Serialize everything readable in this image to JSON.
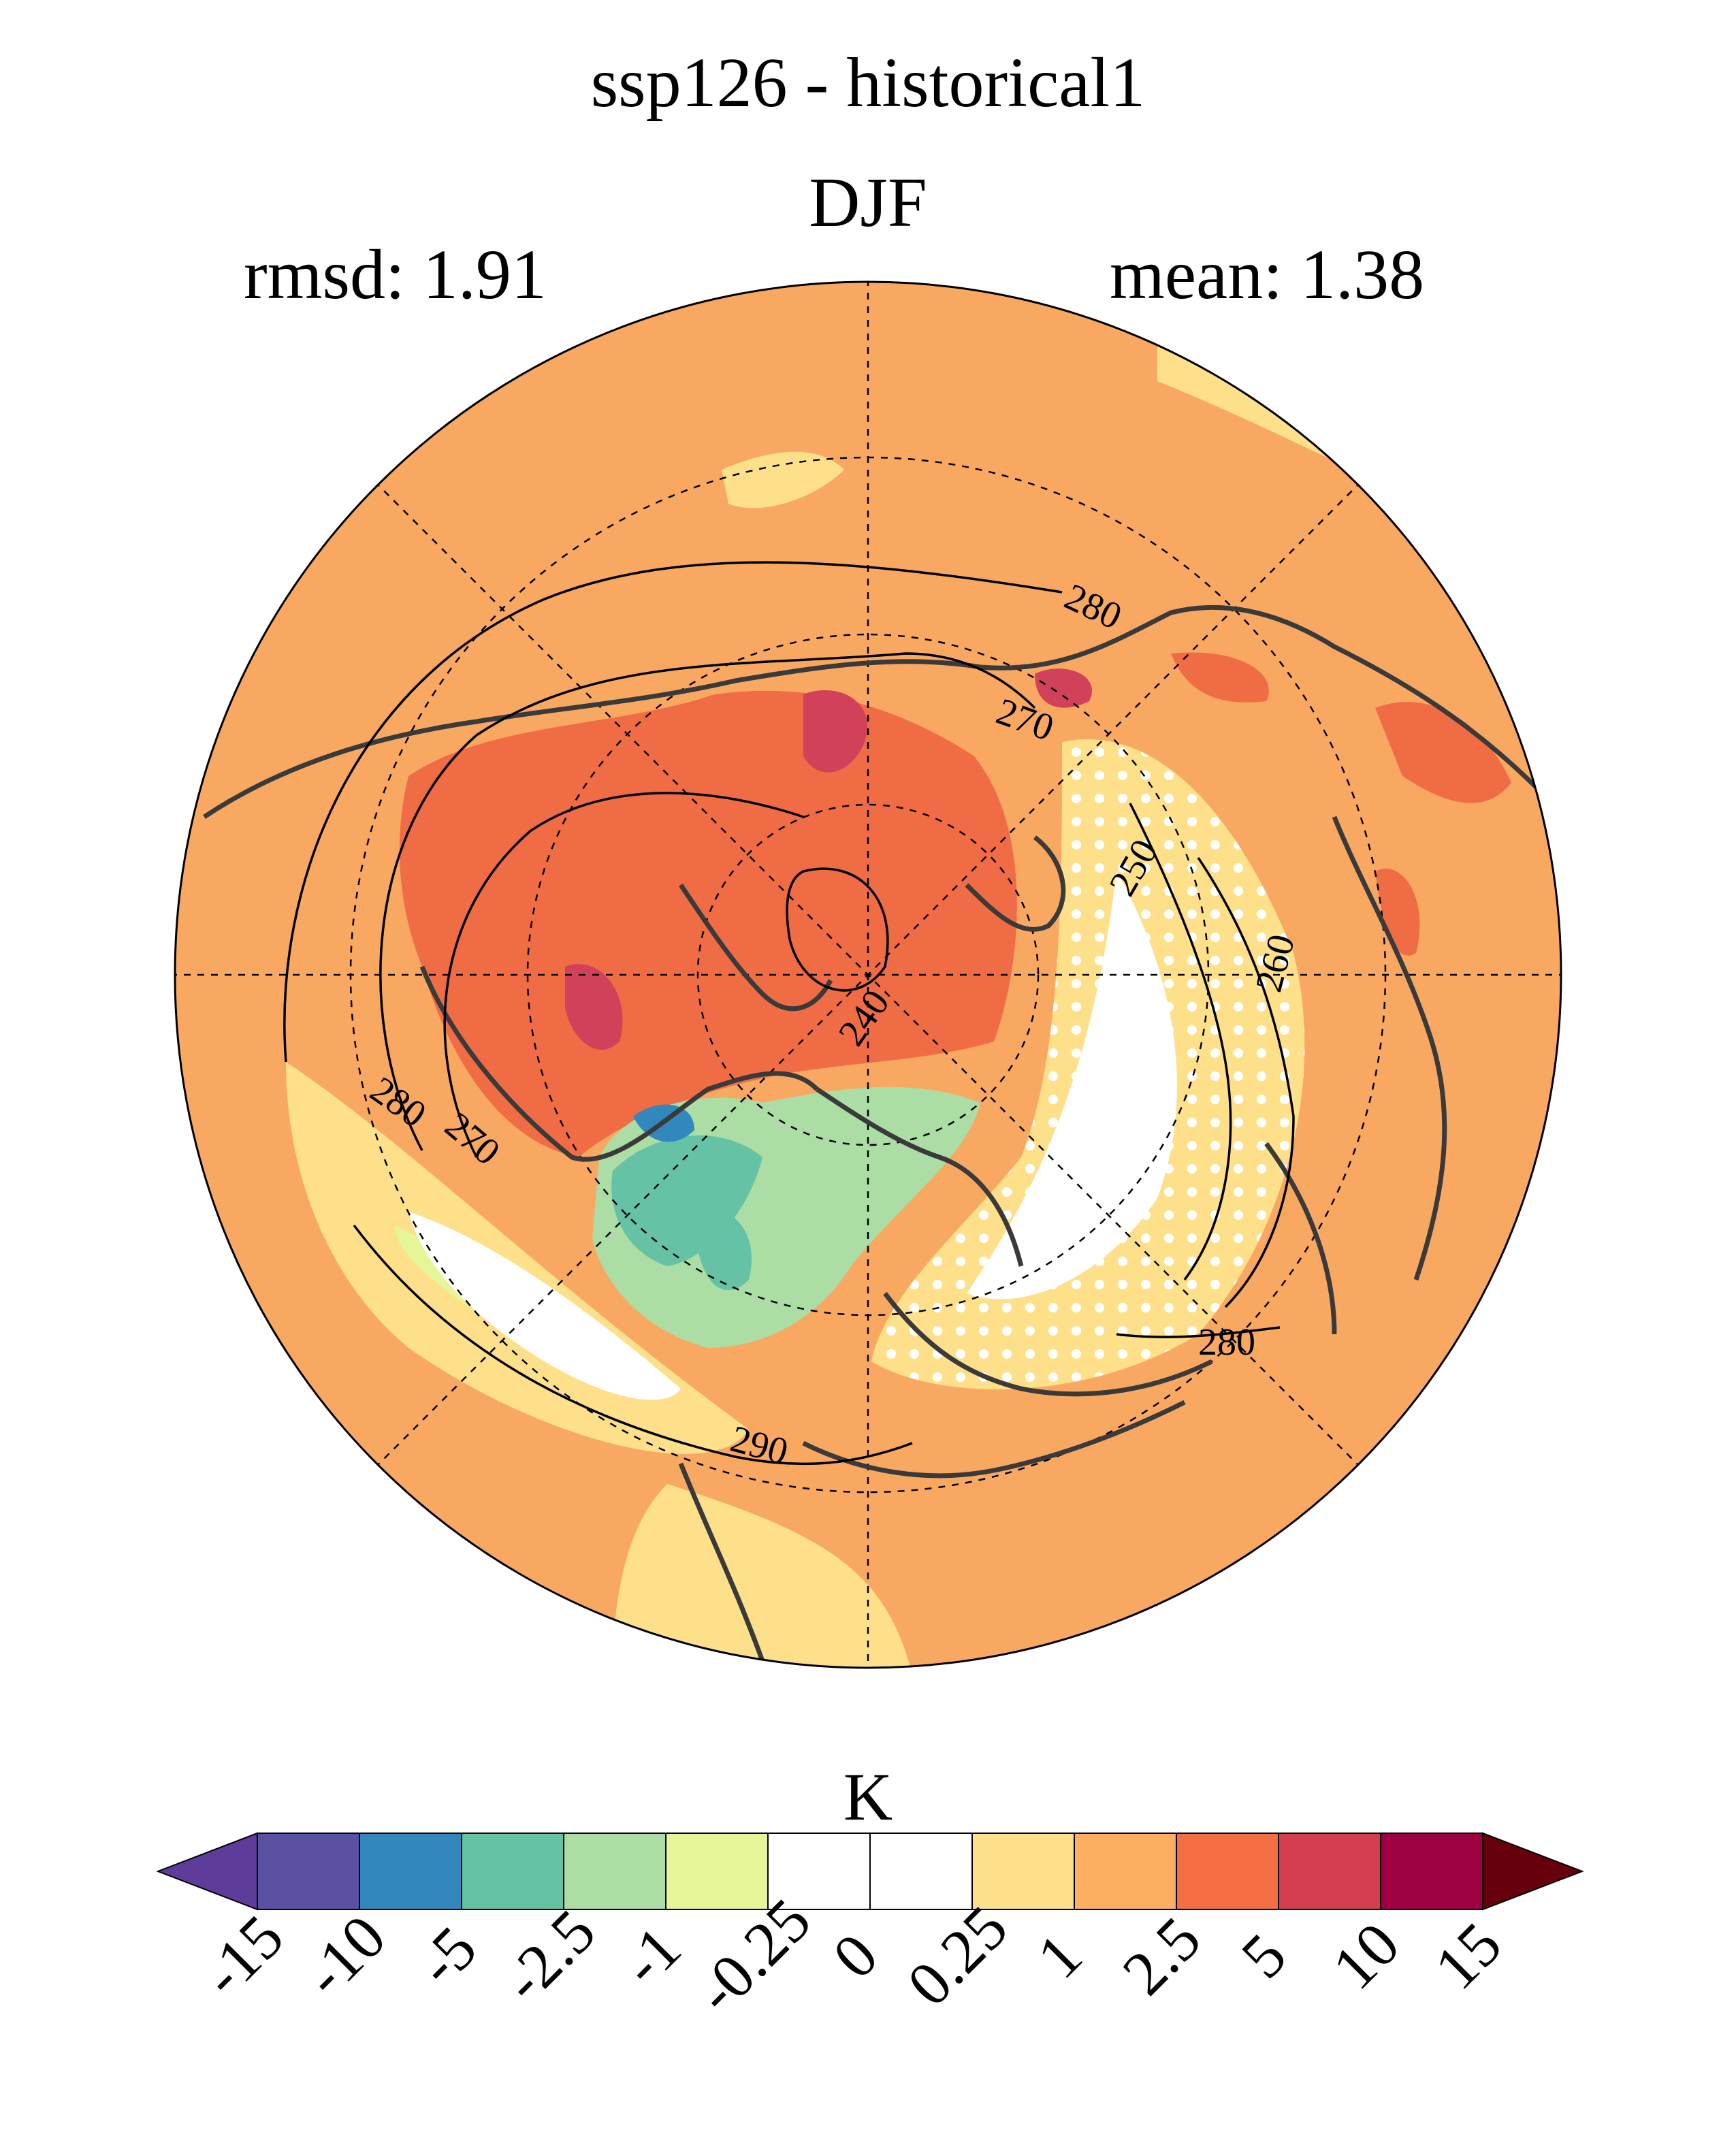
{
  "header": {
    "title": "ssp126 - historical1",
    "season": "DJF",
    "rmsd": "rmsd: 1.91",
    "mean": "mean: 1.38"
  },
  "map": {
    "projection": "north polar stereographic",
    "contour_labels": [
      "280",
      "270",
      "250",
      "260",
      "240",
      "280",
      "270",
      "280",
      "290"
    ],
    "colors": {
      "background": "#f9a862",
      "warm_strong": "#f06c45",
      "warm_max": "#d2415a",
      "neutral": "#ffffff",
      "cool_light": "#e6f598",
      "cool_mid": "#abdda4",
      "cool": "#66c2a5",
      "cold": "#3288bd",
      "light_warm": "#fee08b",
      "coast": "#3a3a3a"
    }
  },
  "colorbar": {
    "units": "K",
    "tick_labels": [
      "-15",
      "-10",
      "-5",
      "-2.5",
      "-1",
      "-0.25",
      "0",
      "0.25",
      "1",
      "2.5",
      "5",
      "10",
      "15"
    ],
    "colors": [
      "#5e3c99",
      "#5b51a2",
      "#3288bd",
      "#66c2a5",
      "#abdda4",
      "#e6f598",
      "#ffffff",
      "#ffffff",
      "#fee08b",
      "#fdae61",
      "#f46d43",
      "#d53e4f",
      "#9e0142",
      "#67000d"
    ]
  }
}
